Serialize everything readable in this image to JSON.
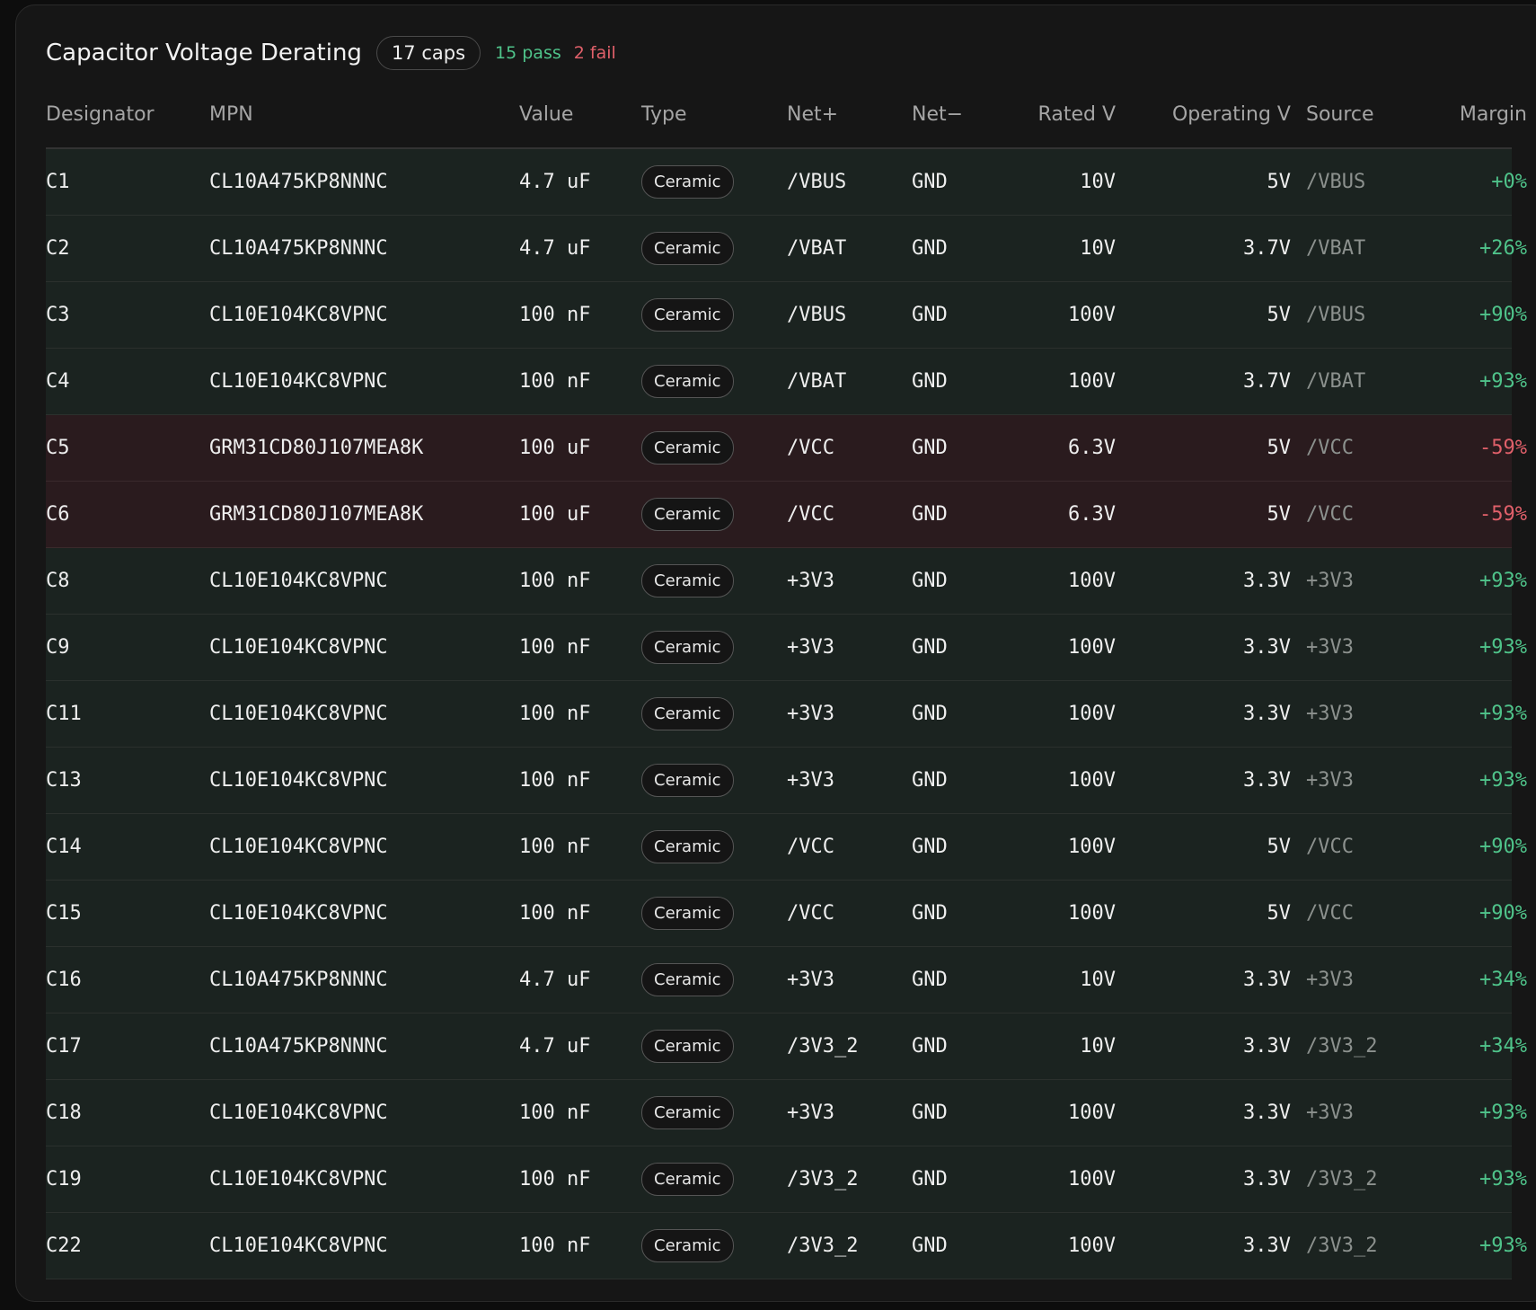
{
  "header": {
    "title": "Capacitor Voltage Derating",
    "count": "17 caps",
    "pass": "15 pass",
    "fail": "2 fail"
  },
  "table": {
    "columns": [
      "Designator",
      "MPN",
      "Value",
      "Type",
      "Net+",
      "Net−",
      "Rated V",
      "Operating V",
      "Source",
      "Margin"
    ],
    "rows": [
      [
        "C1",
        "CL10A475KP8NNNC",
        "4.7 uF",
        "Ceramic",
        "/VBUS",
        "GND",
        "10V",
        "5V",
        "/VBUS",
        "+0%"
      ],
      [
        "C2",
        "CL10A475KP8NNNC",
        "4.7 uF",
        "Ceramic",
        "/VBAT",
        "GND",
        "10V",
        "3.7V",
        "/VBAT",
        "+26%"
      ],
      [
        "C3",
        "CL10E104KC8VPNC",
        "100 nF",
        "Ceramic",
        "/VBUS",
        "GND",
        "100V",
        "5V",
        "/VBUS",
        "+90%"
      ],
      [
        "C4",
        "CL10E104KC8VPNC",
        "100 nF",
        "Ceramic",
        "/VBAT",
        "GND",
        "100V",
        "3.7V",
        "/VBAT",
        "+93%"
      ],
      [
        "C5",
        "GRM31CD80J107MEA8K",
        "100 uF",
        "Ceramic",
        "/VCC",
        "GND",
        "6.3V",
        "5V",
        "/VCC",
        "-59%"
      ],
      [
        "C6",
        "GRM31CD80J107MEA8K",
        "100 uF",
        "Ceramic",
        "/VCC",
        "GND",
        "6.3V",
        "5V",
        "/VCC",
        "-59%"
      ],
      [
        "C8",
        "CL10E104KC8VPNC",
        "100 nF",
        "Ceramic",
        "+3V3",
        "GND",
        "100V",
        "3.3V",
        "+3V3",
        "+93%"
      ],
      [
        "C9",
        "CL10E104KC8VPNC",
        "100 nF",
        "Ceramic",
        "+3V3",
        "GND",
        "100V",
        "3.3V",
        "+3V3",
        "+93%"
      ],
      [
        "C11",
        "CL10E104KC8VPNC",
        "100 nF",
        "Ceramic",
        "+3V3",
        "GND",
        "100V",
        "3.3V",
        "+3V3",
        "+93%"
      ],
      [
        "C13",
        "CL10E104KC8VPNC",
        "100 nF",
        "Ceramic",
        "+3V3",
        "GND",
        "100V",
        "3.3V",
        "+3V3",
        "+93%"
      ],
      [
        "C14",
        "CL10E104KC8VPNC",
        "100 nF",
        "Ceramic",
        "/VCC",
        "GND",
        "100V",
        "5V",
        "/VCC",
        "+90%"
      ],
      [
        "C15",
        "CL10E104KC8VPNC",
        "100 nF",
        "Ceramic",
        "/VCC",
        "GND",
        "100V",
        "5V",
        "/VCC",
        "+90%"
      ],
      [
        "C16",
        "CL10A475KP8NNNC",
        "4.7 uF",
        "Ceramic",
        "+3V3",
        "GND",
        "10V",
        "3.3V",
        "+3V3",
        "+34%"
      ],
      [
        "C17",
        "CL10A475KP8NNNC",
        "4.7 uF",
        "Ceramic",
        "/3V3_2",
        "GND",
        "10V",
        "3.3V",
        "/3V3_2",
        "+34%"
      ],
      [
        "C18",
        "CL10E104KC8VPNC",
        "100 nF",
        "Ceramic",
        "+3V3",
        "GND",
        "100V",
        "3.3V",
        "+3V3",
        "+93%"
      ],
      [
        "C19",
        "CL10E104KC8VPNC",
        "100 nF",
        "Ceramic",
        "/3V3_2",
        "GND",
        "100V",
        "3.3V",
        "/3V3_2",
        "+93%"
      ],
      [
        "C22",
        "CL10E104KC8VPNC",
        "100 nF",
        "Ceramic",
        "/3V3_2",
        "GND",
        "100V",
        "3.3V",
        "/3V3_2",
        "+93%"
      ]
    ]
  }
}
